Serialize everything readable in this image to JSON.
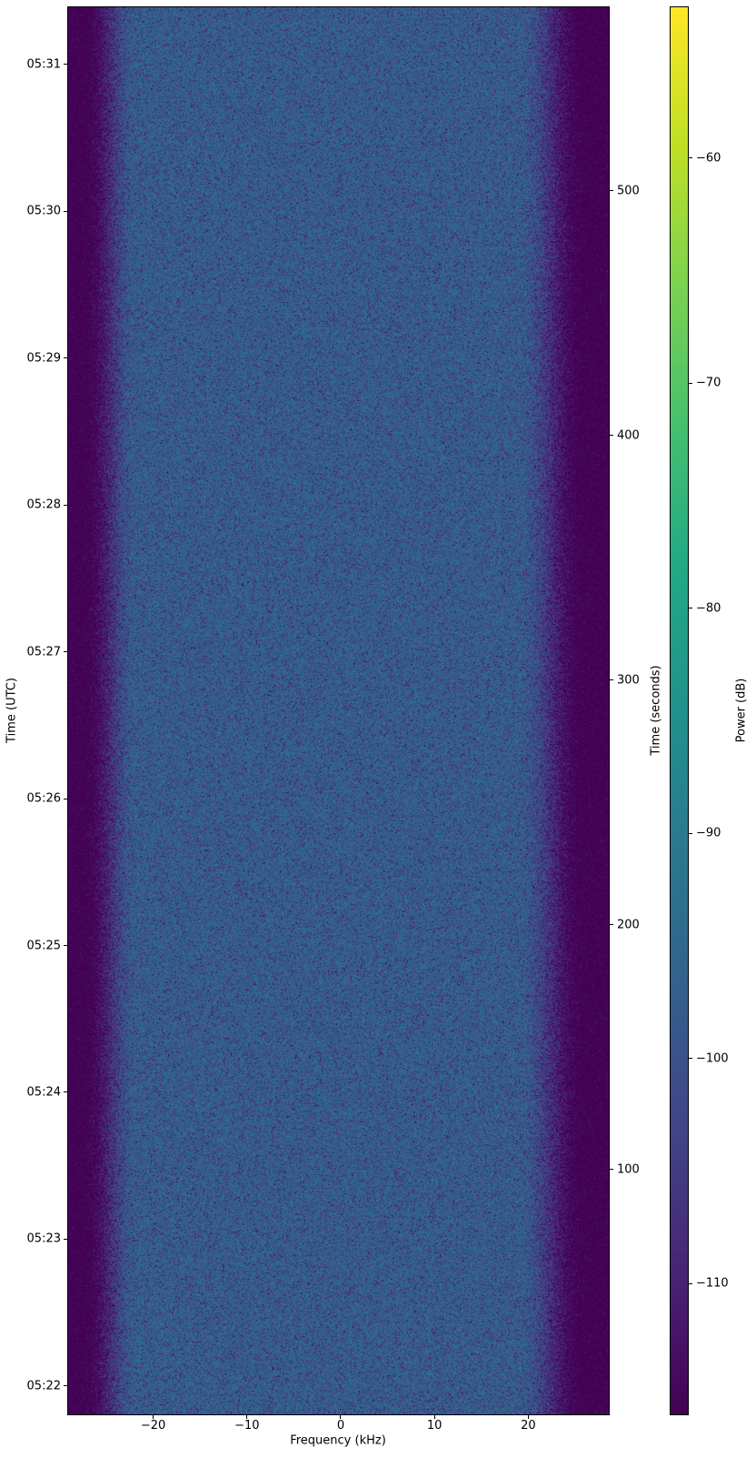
{
  "colors": {
    "background": "#ffffff",
    "text": "#000000",
    "spine": "#000000"
  },
  "chart_data": {
    "type": "heatmap",
    "subtype": "spectrogram-waterfall",
    "title": "",
    "xlabel": "Frequency (kHz)",
    "ylabel_left": "Time (UTC)",
    "ylabel_right": "Time (seconds)",
    "colorbar_label": "Power (dB)",
    "xlim_khz": [
      -29.07,
      28.59
    ],
    "x_ticks": [
      {
        "value": -20,
        "label": "−20"
      },
      {
        "value": -10,
        "label": "−10"
      },
      {
        "value": 0,
        "label": "0"
      },
      {
        "value": 10,
        "label": "10"
      },
      {
        "value": 20,
        "label": "20"
      }
    ],
    "ylim_seconds": [
      0,
      575
    ],
    "y_ticks_utc": [
      {
        "label": "05:31",
        "seconds": 551.6
      },
      {
        "label": "05:30",
        "seconds": 491.6
      },
      {
        "label": "05:29",
        "seconds": 431.6
      },
      {
        "label": "05:28",
        "seconds": 371.6
      },
      {
        "label": "05:27",
        "seconds": 311.6
      },
      {
        "label": "05:26",
        "seconds": 251.6
      },
      {
        "label": "05:25",
        "seconds": 191.6
      },
      {
        "label": "05:24",
        "seconds": 131.6
      },
      {
        "label": "05:23",
        "seconds": 71.6
      },
      {
        "label": "05:22",
        "seconds": 11.6
      }
    ],
    "y_ticks_seconds": [
      {
        "value": 500,
        "label": "500"
      },
      {
        "value": 400,
        "label": "400"
      },
      {
        "value": 300,
        "label": "300"
      },
      {
        "value": 200,
        "label": "200"
      },
      {
        "value": 100,
        "label": "100"
      }
    ],
    "colorbar": {
      "clim_db": [
        -115.8,
        -53.3
      ],
      "ticks": [
        {
          "value": -60,
          "label": "−60"
        },
        {
          "value": -70,
          "label": "−70"
        },
        {
          "value": -80,
          "label": "−80"
        },
        {
          "value": -90,
          "label": "−90"
        },
        {
          "value": -100,
          "label": "−100"
        },
        {
          "value": -110,
          "label": "−110"
        }
      ],
      "colormap": "viridis",
      "stops": [
        "#440154",
        "#482475",
        "#414487",
        "#355f8d",
        "#2a788e",
        "#21918c",
        "#22a884",
        "#44bf70",
        "#7ad151",
        "#bddf26",
        "#fde725"
      ]
    },
    "signal_model": {
      "description": "uniform broadband noise passband spanning the full time range, rolling off to the noise floor at both frequency edges",
      "passband_level_db": -95.8,
      "noise_floor_db": -117.5,
      "flat_region_khz": [
        -21.8,
        19.0
      ],
      "floor_region_khz": [
        -27.6,
        26.3
      ],
      "noise": "exponential power speckle"
    }
  }
}
